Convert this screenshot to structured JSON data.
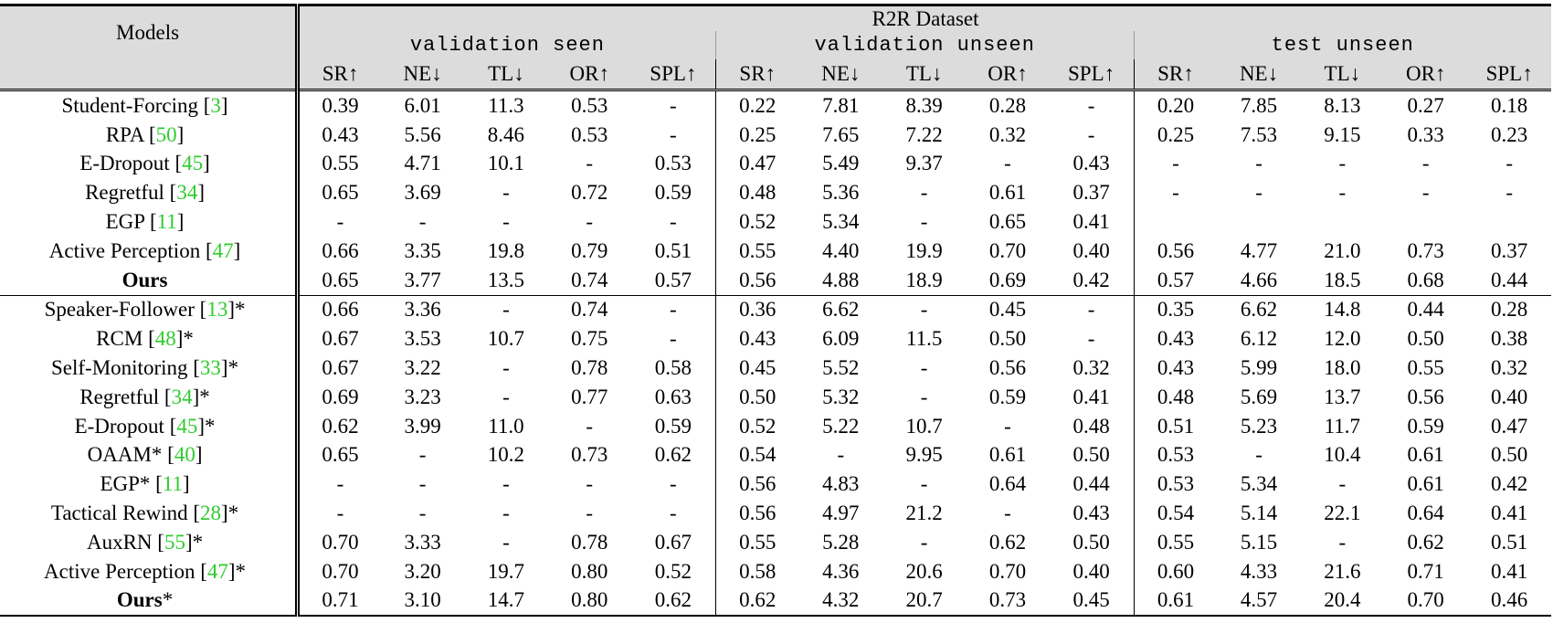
{
  "table": {
    "models_header": "Models",
    "dataset_title": "R2R Dataset",
    "splits": [
      "validation seen",
      "validation unseen",
      "test unseen"
    ],
    "metrics": [
      {
        "label": "SR↑",
        "bold": true
      },
      {
        "label": "NE↓",
        "bold": false
      },
      {
        "label": "TL↓",
        "bold": false
      },
      {
        "label": "OR↑",
        "bold": false
      },
      {
        "label": "SPL↑",
        "bold": false
      }
    ],
    "groups": [
      {
        "rows": [
          {
            "name": "Student-Forcing",
            "ref": "3",
            "suffix": "",
            "name_bold": false,
            "cells": [
              "0.39",
              "6.01",
              "11.3",
              "0.53",
              "-",
              "0.22",
              "7.81",
              "8.39",
              "0.28",
              "-",
              "0.20",
              "7.85",
              "8.13",
              "0.27",
              "0.18"
            ],
            "bold": [
              12
            ]
          },
          {
            "name": "RPA",
            "ref": "50",
            "suffix": "",
            "name_bold": false,
            "cells": [
              "0.43",
              "5.56",
              "8.46",
              "0.53",
              "-",
              "0.25",
              "7.65",
              "7.22",
              "0.32",
              "-",
              "0.25",
              "7.53",
              "9.15",
              "0.33",
              "0.23"
            ],
            "bold": [
              2
            ]
          },
          {
            "name": "E-Dropout",
            "ref": "45",
            "suffix": "",
            "name_bold": false,
            "cells": [
              "0.55",
              "4.71",
              "10.1",
              "-",
              "0.53",
              "0.47",
              "5.49",
              "9.37",
              "-",
              "0.43",
              "-",
              "-",
              "-",
              "-",
              "-"
            ],
            "bold": [
              9
            ]
          },
          {
            "name": "Regretful",
            "ref": "34",
            "suffix": "",
            "name_bold": false,
            "cells": [
              "0.65",
              "3.69",
              "-",
              "0.72",
              "0.59",
              "0.48",
              "5.36",
              "-",
              "0.61",
              "0.37",
              "-",
              "-",
              "-",
              "-",
              "-"
            ],
            "bold": [
              4
            ]
          },
          {
            "name": "EGP",
            "ref": "11",
            "suffix": "",
            "name_bold": false,
            "cells": [
              "-",
              "-",
              "-",
              "-",
              "-",
              "0.52",
              "5.34",
              "-",
              "0.65",
              "0.41",
              "",
              "",
              "",
              "",
              ""
            ],
            "bold": []
          },
          {
            "name": "Active Perception",
            "ref": "47",
            "suffix": "",
            "name_bold": false,
            "cells": [
              "0.66",
              "3.35",
              "19.8",
              "0.79",
              "0.51",
              "0.55",
              "4.40",
              "19.9",
              "0.70",
              "0.40",
              "0.56",
              "4.77",
              "21.0",
              "0.73",
              "0.37"
            ],
            "bold": [
              0,
              1,
              3,
              6,
              8,
              13
            ]
          },
          {
            "name": "Ours",
            "ref": "",
            "suffix": "",
            "name_bold": true,
            "cells": [
              "0.65",
              "3.77",
              "13.5",
              "0.74",
              "0.57",
              "0.56",
              "4.88",
              "18.9",
              "0.69",
              "0.42",
              "0.57",
              "4.66",
              "18.5",
              "0.68",
              "0.44"
            ],
            "bold": [
              5,
              10,
              11,
              14
            ]
          }
        ]
      },
      {
        "rows": [
          {
            "name": "Speaker-Follower",
            "ref": "13",
            "suffix": "*",
            "name_bold": false,
            "cells": [
              "0.66",
              "3.36",
              "-",
              "0.74",
              "-",
              "0.36",
              "6.62",
              "-",
              "0.45",
              "-",
              "0.35",
              "6.62",
              "14.8",
              "0.44",
              "0.28"
            ],
            "bold": []
          },
          {
            "name": "RCM",
            "ref": "48",
            "suffix": "*",
            "name_bold": false,
            "cells": [
              "0.67",
              "3.53",
              "10.7",
              "0.75",
              "-",
              "0.43",
              "6.09",
              "11.5",
              "0.50",
              "-",
              "0.43",
              "6.12",
              "12.0",
              "0.50",
              "0.38"
            ],
            "bold": [
              2
            ]
          },
          {
            "name": "Self-Monitoring",
            "ref": "33",
            "suffix": "*",
            "name_bold": false,
            "cells": [
              "0.67",
              "3.22",
              "-",
              "0.78",
              "0.58",
              "0.45",
              "5.52",
              "-",
              "0.56",
              "0.32",
              "0.43",
              "5.99",
              "18.0",
              "0.55",
              "0.32"
            ],
            "bold": []
          },
          {
            "name": "Regretful",
            "ref": "34",
            "suffix": "*",
            "name_bold": false,
            "cells": [
              "0.69",
              "3.23",
              "-",
              "0.77",
              "0.63",
              "0.50",
              "5.32",
              "-",
              "0.59",
              "0.41",
              "0.48",
              "5.69",
              "13.7",
              "0.56",
              "0.40"
            ],
            "bold": []
          },
          {
            "name": "E-Dropout",
            "ref": "45",
            "suffix": "*",
            "name_bold": false,
            "cells": [
              "0.62",
              "3.99",
              "11.0",
              "-",
              "0.59",
              "0.52",
              "5.22",
              "10.7",
              "-",
              "0.48",
              "0.51",
              "5.23",
              "11.7",
              "0.59",
              "0.47"
            ],
            "bold": [
              7,
              12
            ]
          },
          {
            "name": "OAAM*",
            "ref": "40",
            "suffix": "",
            "name_bold": false,
            "cells": [
              "0.65",
              "-",
              "10.2",
              "0.73",
              "0.62",
              "0.54",
              "-",
              "9.95",
              "0.61",
              "0.50",
              "0.53",
              "-",
              "10.4",
              "0.61",
              "0.50"
            ],
            "bold": []
          },
          {
            "name": "EGP*",
            "ref": "11",
            "suffix": "",
            "name_bold": false,
            "cells": [
              "-",
              "-",
              "-",
              "-",
              "-",
              "0.56",
              "4.83",
              "-",
              "0.64",
              "0.44",
              "0.53",
              "5.34",
              "-",
              "0.61",
              "0.42"
            ],
            "bold": []
          },
          {
            "name": "Tactical Rewind",
            "ref": "28",
            "suffix": "*",
            "name_bold": false,
            "cells": [
              "-",
              "-",
              "-",
              "-",
              "-",
              "0.56",
              "4.97",
              "21.2",
              "-",
              "0.43",
              "0.54",
              "5.14",
              "22.1",
              "0.64",
              "0.41"
            ],
            "bold": []
          },
          {
            "name": "AuxRN",
            "ref": "55",
            "suffix": "*",
            "name_bold": false,
            "cells": [
              "0.70",
              "3.33",
              "-",
              "0.78",
              "0.67",
              "0.55",
              "5.28",
              "-",
              "0.62",
              "0.50",
              "0.55",
              "5.15",
              "-",
              "0.62",
              "0.51"
            ],
            "bold": [
              4,
              9,
              14
            ]
          },
          {
            "name": "Active Perception",
            "ref": "47",
            "suffix": "*",
            "name_bold": false,
            "cells": [
              "0.70",
              "3.20",
              "19.7",
              "0.80",
              "0.52",
              "0.58",
              "4.36",
              "20.6",
              "0.70",
              "0.40",
              "0.60",
              "4.33",
              "21.6",
              "0.71",
              "0.41"
            ],
            "bold": [
              3,
              11,
              13
            ]
          },
          {
            "name": "Ours",
            "ref": "",
            "suffix": "*",
            "name_bold": true,
            "cells": [
              "0.71",
              "3.10",
              "14.7",
              "0.80",
              "0.62",
              "0.62",
              "4.32",
              "20.7",
              "0.73",
              "0.45",
              "0.61",
              "4.57",
              "20.4",
              "0.70",
              "0.46"
            ],
            "bold": [
              0,
              1,
              3,
              5,
              6,
              8,
              10
            ]
          }
        ]
      }
    ]
  },
  "colors": {
    "header_background": "#dcdcdc",
    "reference_link": "#2ecc2e",
    "text": "#000000"
  }
}
